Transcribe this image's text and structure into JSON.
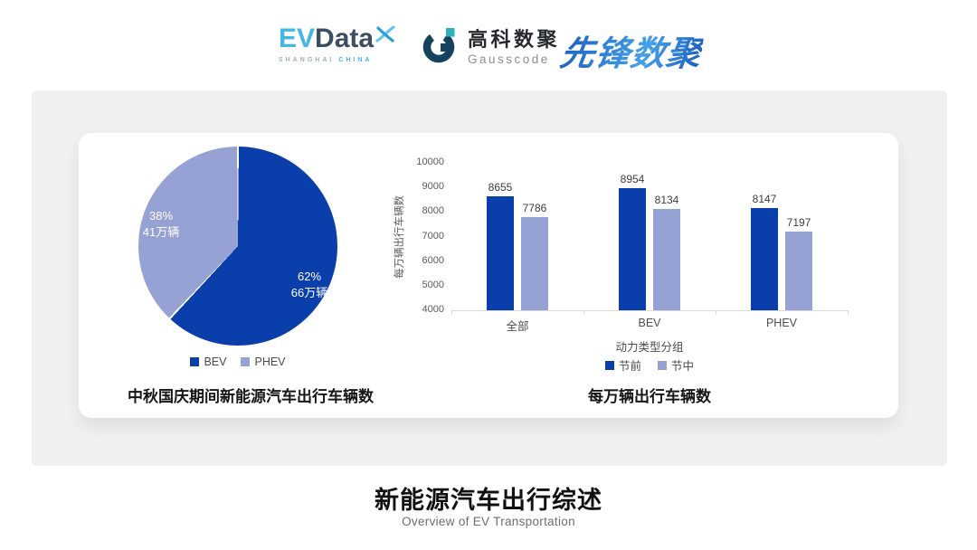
{
  "colors": {
    "primary": "#0a3fab",
    "secondary": "#96a1d4",
    "panel_bg": "#f0f0f1",
    "evdata_blue": "#45b6e5",
    "evdata_dark": "#3d4e63",
    "gauss_navy": "#15425e",
    "gauss_teal": "#2fb2be",
    "pioneer_blue_1": "#1b5ec0",
    "pioneer_blue_2": "#46a0e8"
  },
  "header": {
    "evdata": {
      "part1": "EV",
      "part2": "Data",
      "sub1": "SHANGHAI",
      "sub2": "CHINA"
    },
    "gausscode": {
      "name_cn": "高科数聚",
      "name_en": "Gausscode"
    },
    "pioneer": {
      "name": "先锋数聚"
    }
  },
  "chart_data": [
    {
      "type": "pie",
      "title": "中秋国庆期间新能源汽车出行车辆数",
      "slices": [
        {
          "label": "BEV",
          "pct": 62,
          "pct_label": "62%",
          "count_label": "66万辆",
          "color": "#0a3fab"
        },
        {
          "label": "PHEV",
          "pct": 38,
          "pct_label": "38%",
          "count_label": "41万辆",
          "color": "#96a1d4"
        }
      ],
      "legend_position": "bottom",
      "start_angle_deg": 0,
      "direction": "clockwise"
    },
    {
      "type": "bar",
      "title": "每万辆出行车辆数",
      "xlabel": "动力类型分组",
      "ylabel": "每万辆出行车辆数",
      "categories": [
        "全部",
        "BEV",
        "PHEV"
      ],
      "series": [
        {
          "name": "节前",
          "values": [
            8655,
            8954,
            8147
          ],
          "color": "#0a3fab"
        },
        {
          "name": "节中",
          "values": [
            7786,
            8134,
            7197
          ],
          "color": "#96a1d4"
        }
      ],
      "ylim": [
        4000,
        10000
      ],
      "yticks": [
        10000,
        9000,
        8000,
        7000,
        6000,
        5000,
        4000
      ],
      "grid": false,
      "legend_position": "bottom"
    }
  ],
  "footer": {
    "title": "新能源汽车出行综述",
    "subtitle": "Overview of EV Transportation"
  }
}
